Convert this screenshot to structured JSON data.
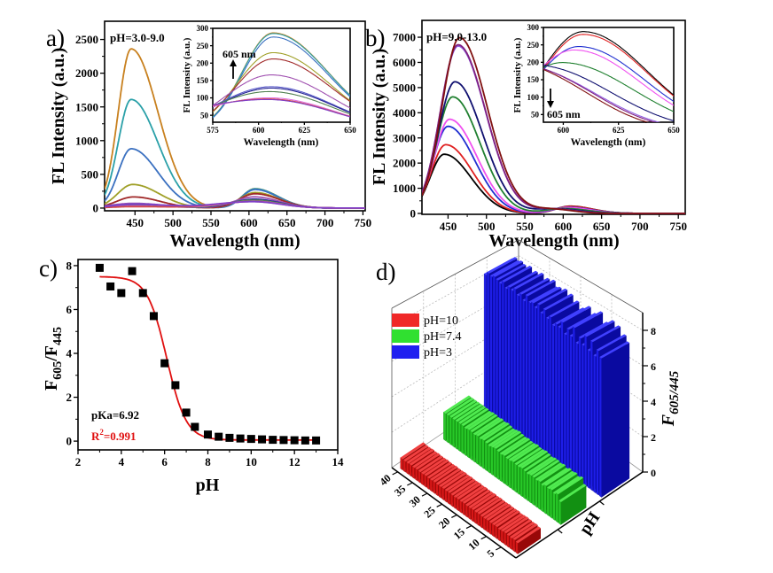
{
  "chart_data": [
    {
      "panel": "a)",
      "type": "line",
      "annotation": "pH=3.0-9.0",
      "xlabel": "Wavelength (nm)",
      "ylabel": "FL Intensity (a.u.)",
      "xlim": [
        410,
        753
      ],
      "ylim": [
        -40,
        2770
      ],
      "xticks": [
        450,
        500,
        550,
        600,
        650,
        700,
        750
      ],
      "yticks": [
        0,
        500,
        1000,
        1500,
        2000,
        2500
      ],
      "series": [
        {
          "color": "#c8801e",
          "peak1_nm": 445,
          "peak1": 2360,
          "sigma1_left_nm": 17,
          "sigma1_right_nm": 35,
          "peak2_nm": 608,
          "peak2": 287,
          "sigma2_left_nm": 17,
          "sigma2_right_nm": 30
        },
        {
          "color": "#2aa0a8",
          "peak1_nm": 445,
          "peak1": 1610,
          "sigma1_left_nm": 17,
          "sigma1_right_nm": 35,
          "peak2_nm": 608,
          "peak2": 285,
          "sigma2_left_nm": 17,
          "sigma2_right_nm": 30
        },
        {
          "color": "#3a70c0",
          "peak1_nm": 445,
          "peak1": 880,
          "sigma1_left_nm": 17,
          "sigma1_right_nm": 35,
          "peak2_nm": 608,
          "peak2": 275,
          "sigma2_left_nm": 17,
          "sigma2_right_nm": 30
        },
        {
          "color": "#a0a028",
          "peak1_nm": 447,
          "peak1": 350,
          "sigma1_left_nm": 20,
          "sigma1_right_nm": 35,
          "peak2_nm": 608,
          "peak2": 230,
          "sigma2_left_nm": 20,
          "sigma2_right_nm": 31
        },
        {
          "color": "#a02828",
          "peak1_nm": 448,
          "peak1": 165,
          "sigma1_left_nm": 22,
          "sigma1_right_nm": 35,
          "peak2_nm": 608,
          "peak2": 212,
          "sigma2_left_nm": 21,
          "sigma2_right_nm": 32
        },
        {
          "color": "#a050b0",
          "peak1_nm": 448,
          "peak1": 70,
          "sigma1_left_nm": 30,
          "sigma1_right_nm": 40,
          "peak2_nm": 607,
          "peak2": 166,
          "sigma2_left_nm": 26,
          "sigma2_right_nm": 33
        },
        {
          "color": "#5858c8",
          "peak1_nm": 450,
          "peak1": 60,
          "sigma1_left_nm": 30,
          "sigma1_right_nm": 45,
          "peak2_nm": 607,
          "peak2": 132,
          "sigma2_left_nm": 30,
          "sigma2_right_nm": 34
        },
        {
          "color": "#202090",
          "peak1_nm": 450,
          "peak1": 45,
          "sigma1_left_nm": 30,
          "sigma1_right_nm": 45,
          "peak2_nm": 607,
          "peak2": 128,
          "sigma2_left_nm": 30,
          "sigma2_right_nm": 34
        },
        {
          "color": "#508050",
          "peak1_nm": 450,
          "peak1": 35,
          "sigma1_left_nm": 30,
          "sigma1_right_nm": 45,
          "peak2_nm": 606,
          "peak2": 118,
          "sigma2_left_nm": 33,
          "sigma2_right_nm": 35
        },
        {
          "color": "#e070e0",
          "peak1_nm": 450,
          "peak1": 28,
          "sigma1_left_nm": 30,
          "sigma1_right_nm": 45,
          "peak2_nm": 606,
          "peak2": 100,
          "sigma2_left_nm": 40,
          "sigma2_right_nm": 36
        },
        {
          "color": "#d04848",
          "peak1_nm": 450,
          "peak1": 22,
          "sigma1_left_nm": 30,
          "sigma1_right_nm": 45,
          "peak2_nm": 605,
          "peak2": 97,
          "sigma2_left_nm": 45,
          "sigma2_right_nm": 37
        },
        {
          "color": "#8040c8",
          "peak1_nm": 450,
          "peak1": 55,
          "sigma1_left_nm": 30,
          "sigma1_right_nm": 45,
          "peak2_nm": 605,
          "peak2": 95,
          "sigma2_left_nm": 48,
          "sigma2_right_nm": 37
        }
      ],
      "inset": {
        "xlabel": "Wavelength (nm)",
        "ylabel": "FL Intensity (a.u.)",
        "xlim": [
          575,
          650
        ],
        "ylim": [
          30,
          300
        ],
        "xticks": [
          575,
          600,
          625,
          650
        ],
        "yticks": [
          50,
          100,
          150,
          200,
          250,
          300
        ],
        "annotation": "605 nm",
        "arrow": "up"
      }
    },
    {
      "panel": "b)",
      "type": "line",
      "annotation": "pH=9.0-13.0",
      "xlabel": "Wavelength (nm)",
      "ylabel": "FL Intensity (a.u.)",
      "xlim": [
        416,
        759
      ],
      "ylim": [
        -35,
        7670
      ],
      "xticks": [
        450,
        500,
        550,
        600,
        650,
        700,
        750
      ],
      "yticks": [
        0,
        1000,
        2000,
        3000,
        4000,
        5000,
        6000,
        7000
      ],
      "series": [
        {
          "color": "#000000",
          "peak1_nm": 445,
          "peak1": 2350,
          "sigma1_left_nm": 18.5,
          "sigma1_right_nm": 35,
          "peak2_nm": 609,
          "peak2": 288,
          "sigma2_left_nm": 19,
          "sigma2_right_nm": 29
        },
        {
          "color": "#e02020",
          "peak1_nm": 447,
          "peak1": 2730,
          "sigma1_left_nm": 19,
          "sigma1_right_nm": 35,
          "peak2_nm": 609,
          "peak2": 280,
          "sigma2_left_nm": 19,
          "sigma2_right_nm": 29
        },
        {
          "color": "#2030d0",
          "peak1_nm": 450,
          "peak1": 3460,
          "sigma1_left_nm": 19.5,
          "sigma1_right_nm": 35,
          "peak2_nm": 607,
          "peak2": 245,
          "sigma2_left_nm": 20,
          "sigma2_right_nm": 30
        },
        {
          "color": "#f050f0",
          "peak1_nm": 452,
          "peak1": 3740,
          "sigma1_left_nm": 20,
          "sigma1_right_nm": 35.5,
          "peak2_nm": 605,
          "peak2": 235,
          "sigma2_left_nm": 21,
          "sigma2_right_nm": 30
        },
        {
          "color": "#208030",
          "peak1_nm": 456,
          "peak1": 4630,
          "sigma1_left_nm": 21,
          "sigma1_right_nm": 35.5,
          "peak2_nm": 600,
          "peak2": 198,
          "sigma2_left_nm": 22,
          "sigma2_right_nm": 32
        },
        {
          "color": "#101070",
          "peak1_nm": 459,
          "peak1": 5230,
          "sigma1_left_nm": 22,
          "sigma1_right_nm": 36,
          "peak2_nm": 590,
          "peak2": 185,
          "sigma2_left_nm": 25,
          "sigma2_right_nm": 32
        },
        {
          "color": "#9060e0",
          "peak1_nm": 463,
          "peak1": 6650,
          "sigma1_left_nm": 23,
          "sigma1_right_nm": 36,
          "peak2_nm": 586,
          "peak2": 172,
          "sigma2_left_nm": 25,
          "sigma2_right_nm": 30
        },
        {
          "color": "#802080",
          "peak1_nm": 463,
          "peak1": 6700,
          "sigma1_left_nm": 23,
          "sigma1_right_nm": 36,
          "peak2_nm": 586,
          "peak2": 172,
          "sigma2_left_nm": 25,
          "sigma2_right_nm": 29
        },
        {
          "color": "#801010",
          "peak1_nm": 465,
          "peak1": 6980,
          "sigma1_left_nm": 23,
          "sigma1_right_nm": 36,
          "peak2_nm": 585,
          "peak2": 168,
          "sigma2_left_nm": 25,
          "sigma2_right_nm": 28
        }
      ],
      "inset": {
        "xlabel": "Wavelength (nm)",
        "ylabel": "FL Intensity (a.u.)",
        "xlim": [
          591,
          650
        ],
        "ylim": [
          28,
          300
        ],
        "xticks": [
          600,
          625,
          650
        ],
        "yticks": [
          50,
          100,
          150,
          200,
          250,
          300
        ],
        "annotation": "605 nm",
        "arrow": "down"
      }
    },
    {
      "panel": "c)",
      "type": "scatter",
      "xlabel": "pH",
      "ylabel": {
        "main": "F",
        "sub1": "605",
        "mid": "/F",
        "sub2": "445"
      },
      "xlim": [
        2,
        14
      ],
      "ylim": [
        -0.4,
        8.28
      ],
      "xticks": [
        2,
        4,
        6,
        8,
        10,
        12,
        14
      ],
      "yticks": [
        0,
        2,
        4,
        6,
        8
      ],
      "x": [
        3,
        3.5,
        4,
        4.5,
        5,
        5.5,
        6,
        6.5,
        7,
        7.4,
        8,
        8.5,
        9,
        9.5,
        10,
        10.5,
        11,
        11.5,
        12,
        12.5,
        13
      ],
      "y": [
        7.9,
        7.05,
        6.75,
        7.75,
        6.75,
        5.7,
        3.55,
        2.55,
        1.3,
        0.65,
        0.3,
        0.2,
        0.15,
        0.12,
        0.1,
        0.08,
        0.06,
        0.05,
        0.04,
        0.03,
        0.03
      ],
      "marker_color": "#000000",
      "fit": {
        "type": "sigmoidal",
        "color": "#e01010",
        "top": 7.5,
        "bottom": 0.05,
        "center": 6.1,
        "slope": 0.45,
        "x_range": [
          3,
          13
        ]
      },
      "annotations": {
        "pka": "pKa=6.92",
        "r2_main": "R",
        "r2_sup": "2",
        "r2_value": "=0.991"
      }
    },
    {
      "panel": "d)",
      "type": "bar3d",
      "zlabel": {
        "main": "F",
        "sub": "605/445"
      },
      "ylabel": "pH",
      "xticks": [
        5,
        10,
        15,
        20,
        25,
        30,
        35,
        40
      ],
      "zticks": [
        0,
        2,
        4,
        6,
        8
      ],
      "legend_position": "top-left",
      "series": [
        {
          "name": "pH=10",
          "color": "#f02828",
          "values": [
            0.55,
            0.6,
            0.58,
            0.6,
            0.62,
            0.6,
            0.58,
            0.62,
            0.6,
            0.6,
            0.62,
            0.6,
            0.6,
            0.62,
            0.6,
            0.62,
            0.6,
            0.6,
            0.62,
            0.6,
            0.62,
            0.6,
            0.6,
            0.62,
            0.6,
            0.62,
            0.6,
            0.6,
            0.62,
            0.6,
            0.6,
            0.62,
            0.6,
            0.6,
            0.62,
            0.6,
            0.62,
            0.6,
            0.6,
            0.62
          ]
        },
        {
          "name": "pH=7.4",
          "color": "#30e030",
          "values": [
            1.2,
            1.5,
            1.4,
            1.5,
            1.45,
            1.5,
            1.4,
            1.5,
            1.45,
            1.5,
            1.5,
            1.45,
            1.5,
            1.55,
            1.5,
            1.5,
            1.55,
            1.5,
            1.5,
            1.55,
            1.5,
            1.55,
            1.6,
            1.55,
            1.5,
            1.55,
            1.6,
            1.55,
            1.6,
            1.55,
            1.6,
            1.6,
            1.55,
            1.6,
            1.6,
            1.6,
            1.6,
            1.6,
            1.6,
            1.6
          ]
        },
        {
          "name": "pH=3",
          "color": "#2020f0",
          "values": [
            7.6,
            7.9,
            7.5,
            8.2,
            7.6,
            8.3,
            7.7,
            8.0,
            7.6,
            8.4,
            7.8,
            8.1,
            7.7,
            8.3,
            7.9,
            8.0,
            7.8,
            8.2,
            8.0,
            8.4,
            8.1,
            8.5,
            8.2,
            8.4,
            8.3,
            8.6,
            8.2,
            8.5,
            8.3,
            8.6,
            8.4,
            8.5,
            8.3,
            8.6,
            8.4,
            8.5,
            8.6,
            8.5,
            8.6,
            8.4
          ]
        }
      ]
    }
  ]
}
